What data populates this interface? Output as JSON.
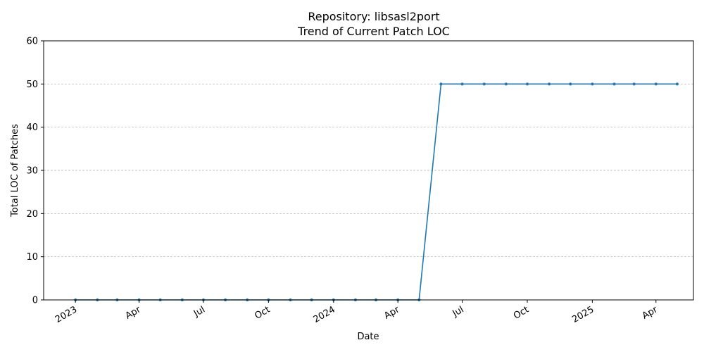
{
  "chart_data": {
    "type": "line",
    "title_line1": "Repository: libsasl2port",
    "title_line2": "Trend of Current Patch LOC",
    "xlabel": "Date",
    "ylabel": "Total LOC of Patches",
    "ylim": [
      0,
      60
    ],
    "xlim": [
      "2022-11-17",
      "2025-05-24"
    ],
    "y_ticks": [
      0,
      10,
      20,
      30,
      40,
      50,
      60
    ],
    "x_ticks": [
      {
        "date": "2023-01-01",
        "label": "2023"
      },
      {
        "date": "2023-04-01",
        "label": "Apr"
      },
      {
        "date": "2023-07-01",
        "label": "Jul"
      },
      {
        "date": "2023-10-01",
        "label": "Oct"
      },
      {
        "date": "2024-01-01",
        "label": "2024"
      },
      {
        "date": "2024-04-01",
        "label": "Apr"
      },
      {
        "date": "2024-07-01",
        "label": "Jul"
      },
      {
        "date": "2024-10-01",
        "label": "Oct"
      },
      {
        "date": "2025-01-01",
        "label": "2025"
      },
      {
        "date": "2025-04-01",
        "label": "Apr"
      }
    ],
    "grid": "horizontal-dashed",
    "line_color": "#1f77b4",
    "series": [
      {
        "x": [
          "2023-01-01",
          "2023-02-01",
          "2023-03-01",
          "2023-04-01",
          "2023-05-01",
          "2023-06-01",
          "2023-07-01",
          "2023-08-01",
          "2023-09-01",
          "2023-10-01",
          "2023-11-01",
          "2023-12-01",
          "2024-01-01",
          "2024-02-01",
          "2024-03-01",
          "2024-04-01",
          "2024-05-01",
          "2024-06-01",
          "2024-07-01",
          "2024-08-01",
          "2024-09-01",
          "2024-10-01",
          "2024-11-01",
          "2024-12-01",
          "2025-01-01",
          "2025-02-01",
          "2025-03-01",
          "2025-04-01",
          "2025-05-01"
        ],
        "values": [
          0,
          0,
          0,
          0,
          0,
          0,
          0,
          0,
          0,
          0,
          0,
          0,
          0,
          0,
          0,
          0,
          0,
          50,
          50,
          50,
          50,
          50,
          50,
          50,
          50,
          50,
          50,
          50,
          50
        ]
      }
    ]
  }
}
